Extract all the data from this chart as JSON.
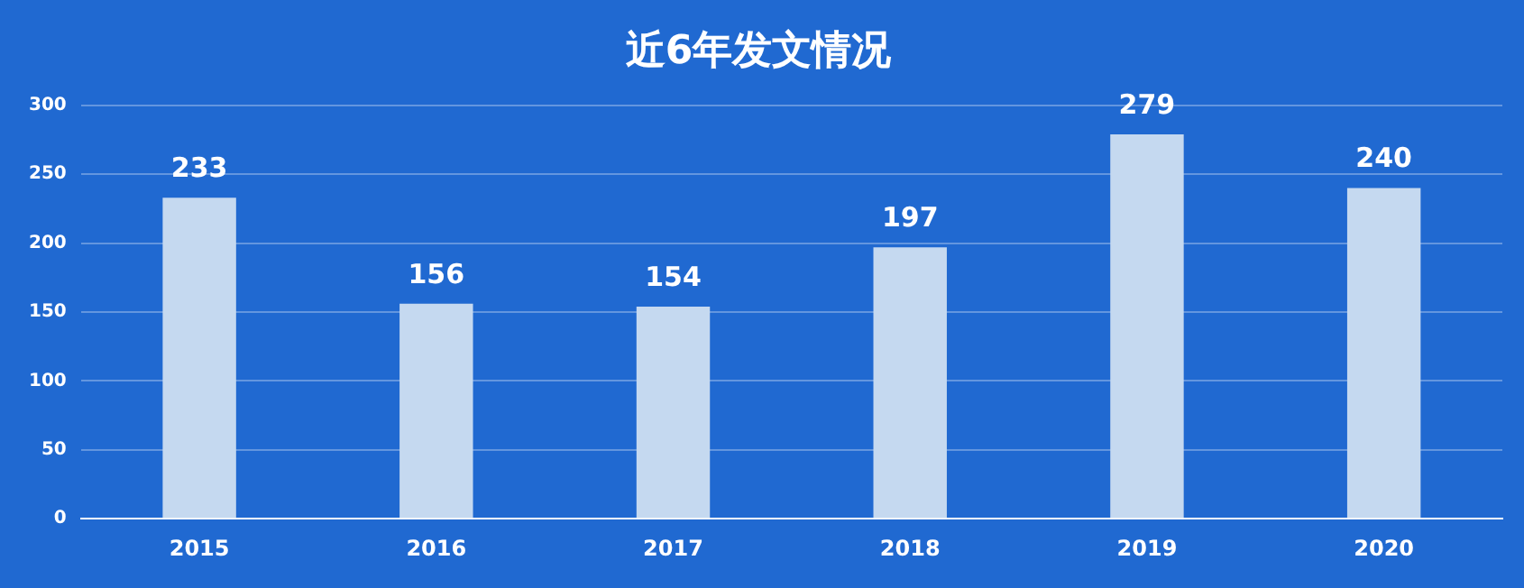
{
  "chart_data": {
    "type": "bar",
    "title": "近6年发文情况",
    "categories": [
      "2015",
      "2016",
      "2017",
      "2018",
      "2019",
      "2020"
    ],
    "values": [
      233,
      156,
      154,
      197,
      279,
      240
    ],
    "color": "#c5d9f0",
    "ylim": [
      0,
      300
    ],
    "yticks": [
      0,
      50,
      100,
      150,
      200,
      250,
      300
    ],
    "grid": "y",
    "data_labels": true,
    "legend": false
  }
}
